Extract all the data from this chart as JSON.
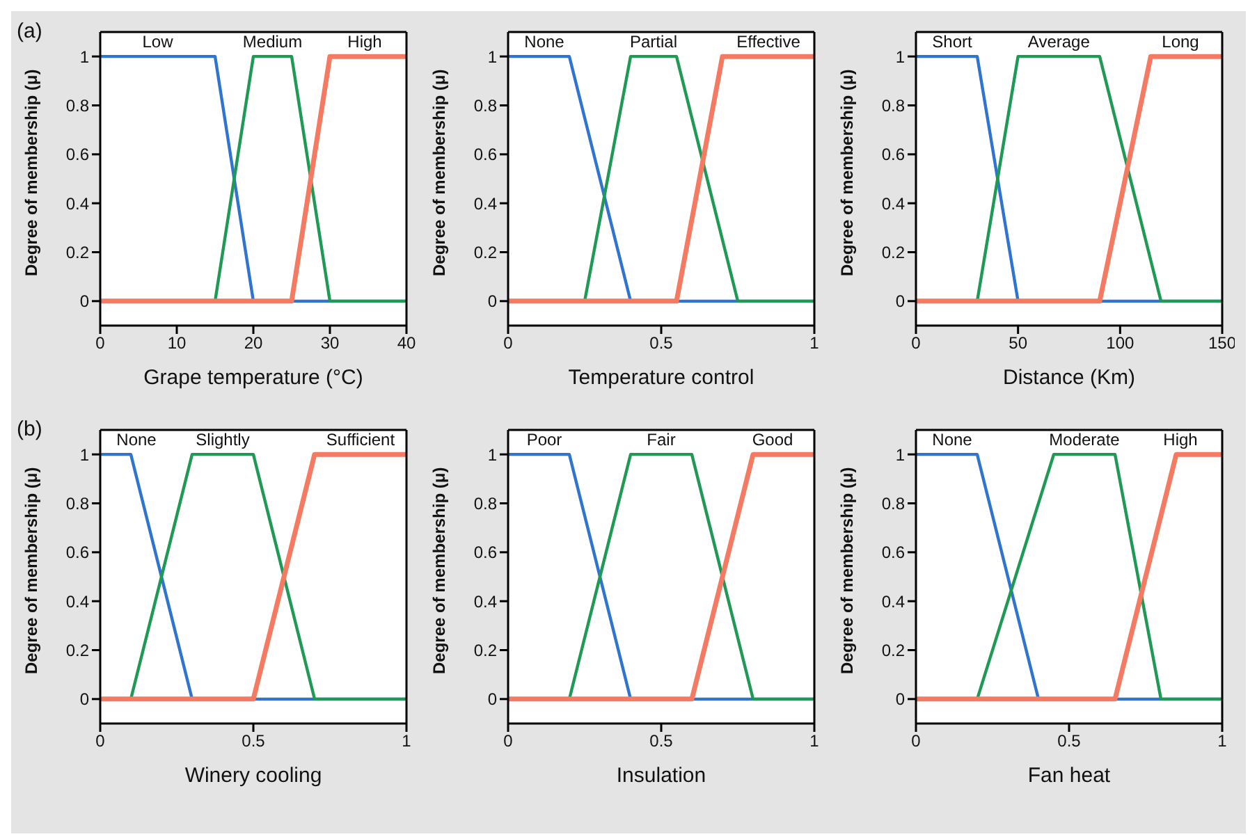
{
  "chart_data": [
    {
      "type": "line",
      "annotations": [
        "(a)"
      ],
      "xlabel": "Grape temperature (°C)",
      "ylabel": "Degree of membership (μ)",
      "xlim": [
        0,
        40
      ],
      "xticks": [
        0,
        10,
        20,
        30,
        40
      ],
      "ylim": [
        -0.1,
        1.1
      ],
      "yticks": [
        0,
        0.2,
        0.4,
        0.6,
        0.8,
        1
      ],
      "legend": false,
      "marker": "none",
      "line_style": "solid",
      "series": [
        {
          "name": "Low",
          "color": "#2f74d0",
          "x": [
            0,
            15,
            20,
            40
          ],
          "values": [
            1,
            1,
            0,
            0
          ]
        },
        {
          "name": "Medium",
          "color": "#1f9a55",
          "x": [
            0,
            15,
            20,
            25,
            30,
            40
          ],
          "values": [
            0,
            0,
            1,
            1,
            0,
            0
          ]
        },
        {
          "name": "High",
          "color": "#f47a62",
          "x": [
            0,
            25,
            30,
            40
          ],
          "values": [
            0,
            0,
            1,
            1
          ]
        }
      ]
    },
    {
      "type": "line",
      "xlabel": "Temperature control",
      "ylabel": "Degree of membership (μ)",
      "xlim": [
        0,
        1
      ],
      "xticks": [
        0,
        0.5,
        1
      ],
      "ylim": [
        -0.1,
        1.1
      ],
      "yticks": [
        0,
        0.2,
        0.4,
        0.6,
        0.8,
        1
      ],
      "legend": false,
      "marker": "none",
      "line_style": "solid",
      "series": [
        {
          "name": "None",
          "color": "#2f74d0",
          "x": [
            0,
            0.2,
            0.4,
            1
          ],
          "values": [
            1,
            1,
            0,
            0
          ]
        },
        {
          "name": "Partial",
          "color": "#1f9a55",
          "x": [
            0,
            0.25,
            0.4,
            0.55,
            0.75,
            1
          ],
          "values": [
            0,
            0,
            1,
            1,
            0,
            0
          ]
        },
        {
          "name": "Effective",
          "color": "#f47a62",
          "x": [
            0,
            0.55,
            0.7,
            1
          ],
          "values": [
            0,
            0,
            1,
            1
          ]
        }
      ]
    },
    {
      "type": "line",
      "xlabel": "Distance (Km)",
      "ylabel": "Degree of membership (μ)",
      "xlim": [
        0,
        150
      ],
      "xticks": [
        0,
        50,
        100,
        150
      ],
      "ylim": [
        -0.1,
        1.1
      ],
      "yticks": [
        0,
        0.2,
        0.4,
        0.6,
        0.8,
        1
      ],
      "legend": false,
      "marker": "none",
      "line_style": "solid",
      "series": [
        {
          "name": "Short",
          "color": "#2f74d0",
          "x": [
            0,
            30,
            50,
            150
          ],
          "values": [
            1,
            1,
            0,
            0
          ]
        },
        {
          "name": "Average",
          "color": "#1f9a55",
          "x": [
            0,
            30,
            50,
            90,
            120,
            150
          ],
          "values": [
            0,
            0,
            1,
            1,
            0,
            0
          ]
        },
        {
          "name": "Long",
          "color": "#f47a62",
          "x": [
            0,
            90,
            115,
            150
          ],
          "values": [
            0,
            0,
            1,
            1
          ]
        }
      ]
    },
    {
      "type": "line",
      "annotations": [
        "(b)"
      ],
      "xlabel": "Winery cooling",
      "ylabel": "Degree of membership (μ)",
      "xlim": [
        0,
        1
      ],
      "xticks": [
        0,
        0.5,
        1
      ],
      "ylim": [
        -0.1,
        1.1
      ],
      "yticks": [
        0,
        0.2,
        0.4,
        0.6,
        0.8,
        1
      ],
      "legend": false,
      "marker": "none",
      "line_style": "solid",
      "series": [
        {
          "name": "None",
          "color": "#2f74d0",
          "x": [
            0,
            0.1,
            0.3,
            1
          ],
          "values": [
            1,
            1,
            0,
            0
          ]
        },
        {
          "name": "Slightly",
          "color": "#1f9a55",
          "x": [
            0,
            0.1,
            0.3,
            0.5,
            0.7,
            1
          ],
          "values": [
            0,
            0,
            1,
            1,
            0,
            0
          ]
        },
        {
          "name": "Sufficient",
          "color": "#f47a62",
          "x": [
            0,
            0.5,
            0.7,
            1
          ],
          "values": [
            0,
            0,
            1,
            1
          ]
        }
      ]
    },
    {
      "type": "line",
      "xlabel": "Insulation",
      "ylabel": "Degree of membership (μ)",
      "xlim": [
        0,
        1
      ],
      "xticks": [
        0,
        0.5,
        1
      ],
      "ylim": [
        -0.1,
        1.1
      ],
      "yticks": [
        0,
        0.2,
        0.4,
        0.6,
        0.8,
        1
      ],
      "legend": false,
      "marker": "none",
      "line_style": "solid",
      "series": [
        {
          "name": "Poor",
          "color": "#2f74d0",
          "x": [
            0,
            0.2,
            0.4,
            1
          ],
          "values": [
            1,
            1,
            0,
            0
          ]
        },
        {
          "name": "Fair",
          "color": "#1f9a55",
          "x": [
            0,
            0.2,
            0.4,
            0.6,
            0.8,
            1
          ],
          "values": [
            0,
            0,
            1,
            1,
            0,
            0
          ]
        },
        {
          "name": "Good",
          "color": "#f47a62",
          "x": [
            0,
            0.6,
            0.8,
            1
          ],
          "values": [
            0,
            0,
            1,
            1
          ]
        }
      ]
    },
    {
      "type": "line",
      "xlabel": "Fan heat",
      "ylabel": "Degree of membership (μ)",
      "xlim": [
        0,
        1
      ],
      "xticks": [
        0,
        0.5,
        1
      ],
      "ylim": [
        -0.1,
        1.1
      ],
      "yticks": [
        0,
        0.2,
        0.4,
        0.6,
        0.8,
        1
      ],
      "legend": false,
      "marker": "none",
      "line_style": "solid",
      "series": [
        {
          "name": "None",
          "color": "#2f74d0",
          "x": [
            0,
            0.2,
            0.4,
            1
          ],
          "values": [
            1,
            1,
            0,
            0
          ]
        },
        {
          "name": "Moderate",
          "color": "#1f9a55",
          "x": [
            0,
            0.2,
            0.45,
            0.65,
            0.8,
            1
          ],
          "values": [
            0,
            0,
            1,
            1,
            0,
            0
          ]
        },
        {
          "name": "High",
          "color": "#f47a62",
          "x": [
            0,
            0.65,
            0.85,
            1
          ],
          "values": [
            0,
            0,
            1,
            1
          ]
        }
      ]
    }
  ]
}
